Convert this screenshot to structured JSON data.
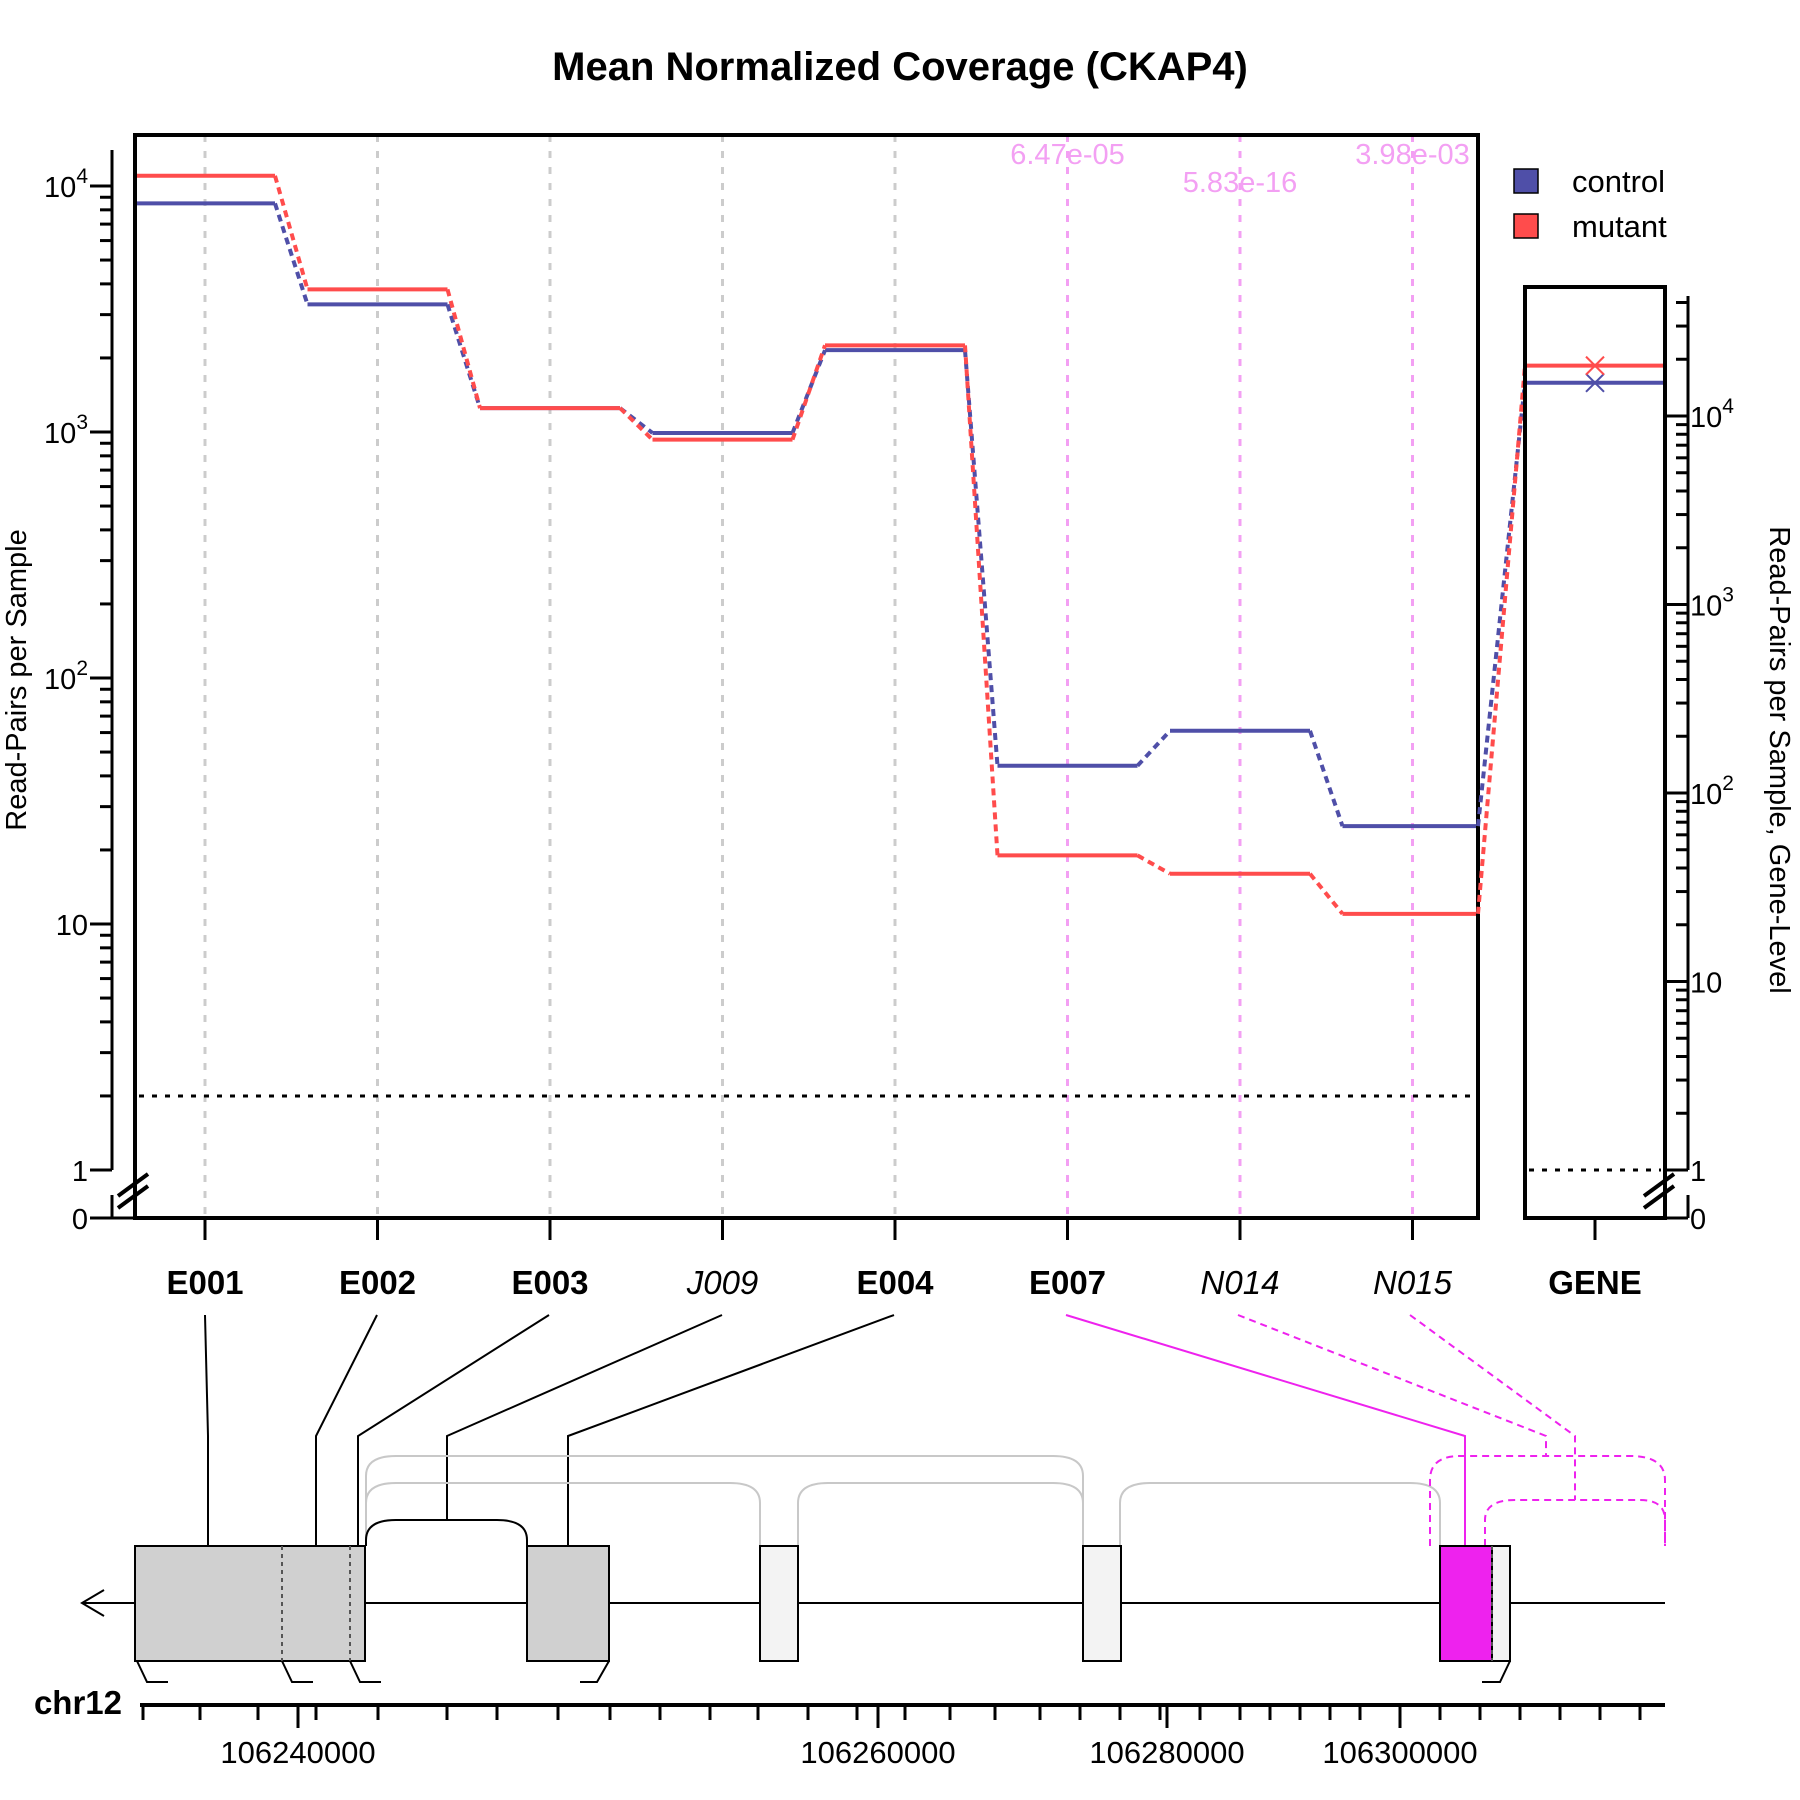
{
  "chart_data": {
    "type": "line",
    "title": "Mean Normalized Coverage (CKAP4)",
    "ylabel": "Read-Pairs per Sample",
    "ylabel_right": "Read-Pairs per Sample, Gene-Level",
    "y_scale": "log10(y+1), axis break between 0 and 1",
    "y_ticks": [
      "0",
      "1",
      "10",
      "10^2",
      "10^3",
      "10^4"
    ],
    "threshold": 1,
    "categories": [
      "E001",
      "E002",
      "E003",
      "J009",
      "E004",
      "E007",
      "N014",
      "N015"
    ],
    "category_style": [
      "bold",
      "bold",
      "bold",
      "italic",
      "bold",
      "bold",
      "italic",
      "italic"
    ],
    "series": [
      {
        "name": "control",
        "color": "#4f4fa8",
        "values": [
          8500,
          3300,
          1250,
          990,
          2150,
          43,
          60,
          24
        ],
        "gene_level": 15000
      },
      {
        "name": "mutant",
        "color": "#ff4c4c",
        "values": [
          11000,
          3800,
          1250,
          930,
          2250,
          18,
          15,
          10
        ],
        "gene_level": 18500
      }
    ],
    "pvalues": [
      {
        "feature": "E007",
        "text": "6.47e-05"
      },
      {
        "feature": "N014",
        "text": "5.83e-16"
      },
      {
        "feature": "N015",
        "text": "3.98e-03"
      }
    ],
    "gene_panel": {
      "label": "GENE"
    },
    "legend": {
      "position": "top-right",
      "entries": [
        "control",
        "mutant"
      ]
    },
    "gene_model": {
      "chromosome": "chr12",
      "strand": "-",
      "x_ticks": [
        "106240000",
        "106260000",
        "106280000",
        "106300000"
      ],
      "highlight_color": "#ee22ee"
    }
  }
}
